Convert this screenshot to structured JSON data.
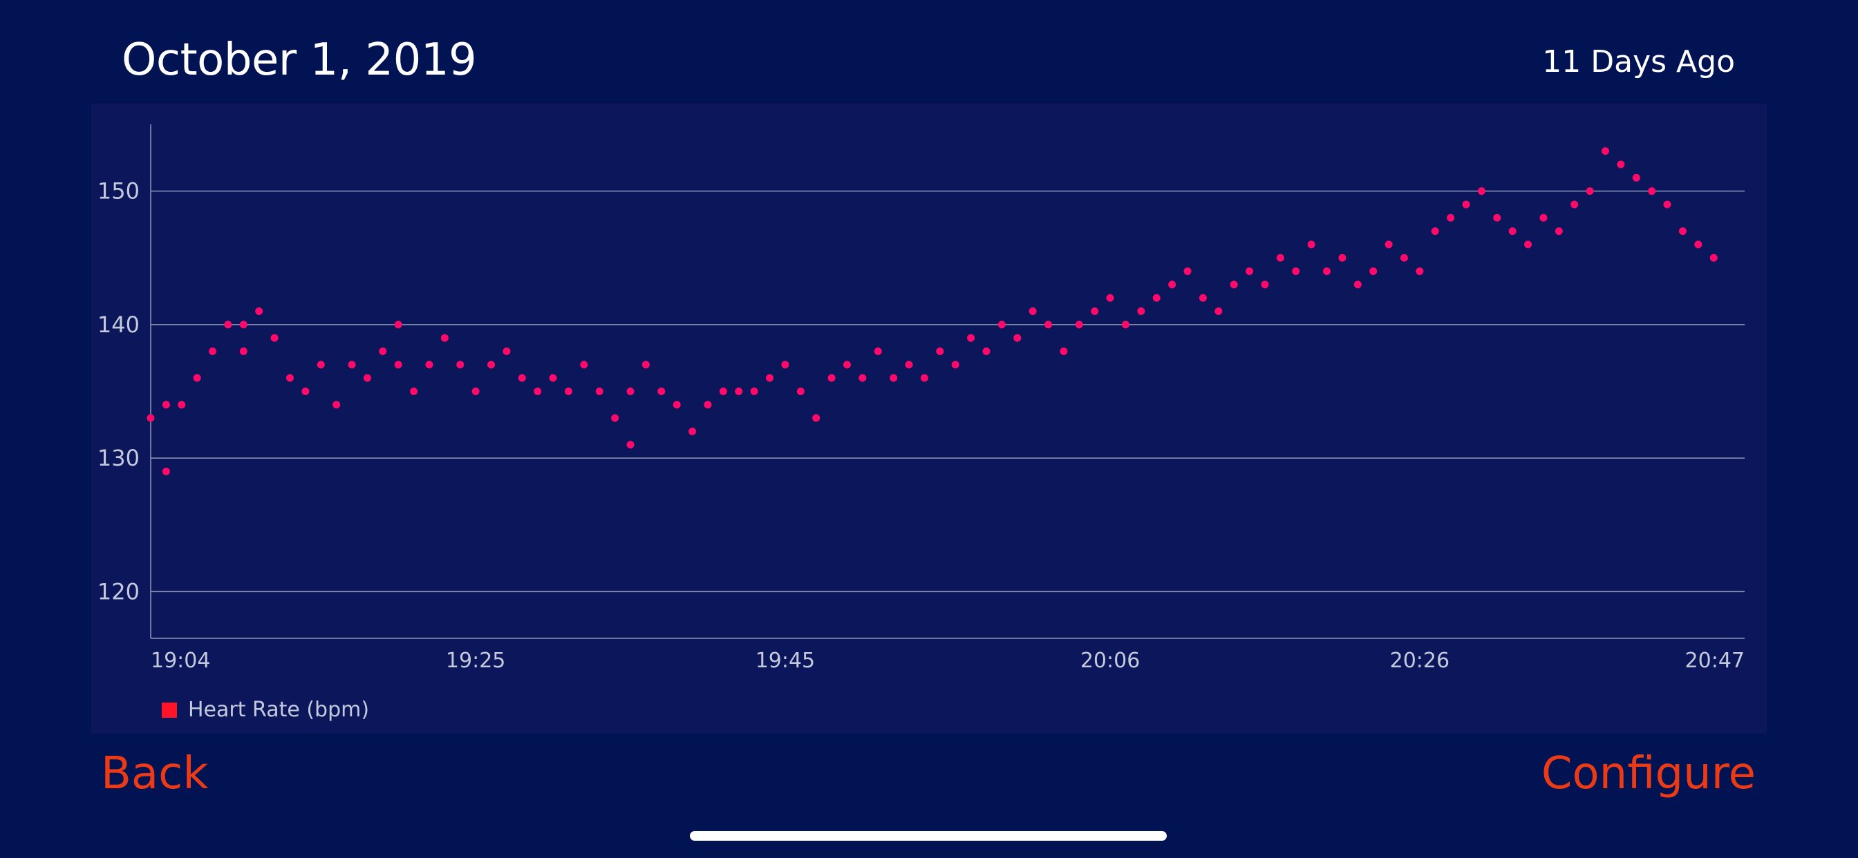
{
  "header": {
    "date": "October 1, 2019",
    "ago": "11 Days Ago"
  },
  "footer": {
    "back_label": "Back",
    "configure_label": "Configure"
  },
  "colors": {
    "background": "#011353",
    "panel": "#0c175b",
    "points": "#ff0a6a",
    "legend_swatch": "#ff1428",
    "buttons": "#ea3a16",
    "gridline": "#9098b8"
  },
  "chart_data": {
    "type": "scatter",
    "legend": [
      "Heart Rate (bpm)"
    ],
    "legend_position": "bottom-left",
    "y_ticks": [
      120,
      130,
      140,
      150
    ],
    "ylim": [
      116.5,
      155
    ],
    "x_ticks": [
      "19:04",
      "19:25",
      "19:45",
      "20:06",
      "20:26",
      "20:47"
    ],
    "xlim": [
      "19:04",
      "20:47"
    ],
    "grid": true,
    "series": [
      {
        "name": "Heart Rate (bpm)",
        "color": "#ff0a6a",
        "points": [
          [
            "19:04",
            133
          ],
          [
            "19:05",
            134
          ],
          [
            "19:05",
            129
          ],
          [
            "19:06",
            134
          ],
          [
            "19:07",
            136
          ],
          [
            "19:08",
            138
          ],
          [
            "19:09",
            140
          ],
          [
            "19:10",
            140
          ],
          [
            "19:10",
            138
          ],
          [
            "19:11",
            141
          ],
          [
            "19:12",
            139
          ],
          [
            "19:13",
            136
          ],
          [
            "19:14",
            135
          ],
          [
            "19:15",
            137
          ],
          [
            "19:16",
            134
          ],
          [
            "19:17",
            137
          ],
          [
            "19:18",
            136
          ],
          [
            "19:19",
            138
          ],
          [
            "19:20",
            140
          ],
          [
            "19:20",
            137
          ],
          [
            "19:21",
            135
          ],
          [
            "19:22",
            137
          ],
          [
            "19:23",
            139
          ],
          [
            "19:24",
            137
          ],
          [
            "19:25",
            135
          ],
          [
            "19:26",
            137
          ],
          [
            "19:27",
            138
          ],
          [
            "19:28",
            136
          ],
          [
            "19:29",
            135
          ],
          [
            "19:30",
            136
          ],
          [
            "19:31",
            135
          ],
          [
            "19:32",
            137
          ],
          [
            "19:33",
            135
          ],
          [
            "19:34",
            133
          ],
          [
            "19:35",
            131
          ],
          [
            "19:35",
            135
          ],
          [
            "19:36",
            137
          ],
          [
            "19:37",
            135
          ],
          [
            "19:38",
            134
          ],
          [
            "19:39",
            132
          ],
          [
            "19:40",
            134
          ],
          [
            "19:41",
            135
          ],
          [
            "19:42",
            135
          ],
          [
            "19:43",
            135
          ],
          [
            "19:44",
            136
          ],
          [
            "19:45",
            137
          ],
          [
            "19:46",
            135
          ],
          [
            "19:47",
            133
          ],
          [
            "19:48",
            136
          ],
          [
            "19:49",
            137
          ],
          [
            "19:50",
            136
          ],
          [
            "19:51",
            138
          ],
          [
            "19:52",
            136
          ],
          [
            "19:53",
            137
          ],
          [
            "19:54",
            136
          ],
          [
            "19:55",
            138
          ],
          [
            "19:56",
            137
          ],
          [
            "19:57",
            139
          ],
          [
            "19:58",
            138
          ],
          [
            "19:59",
            140
          ],
          [
            "20:00",
            139
          ],
          [
            "20:01",
            141
          ],
          [
            "20:02",
            140
          ],
          [
            "20:03",
            138
          ],
          [
            "20:04",
            140
          ],
          [
            "20:05",
            141
          ],
          [
            "20:06",
            142
          ],
          [
            "20:07",
            140
          ],
          [
            "20:08",
            141
          ],
          [
            "20:09",
            142
          ],
          [
            "20:10",
            143
          ],
          [
            "20:11",
            144
          ],
          [
            "20:12",
            142
          ],
          [
            "20:13",
            141
          ],
          [
            "20:14",
            143
          ],
          [
            "20:15",
            144
          ],
          [
            "20:16",
            143
          ],
          [
            "20:17",
            145
          ],
          [
            "20:18",
            144
          ],
          [
            "20:19",
            146
          ],
          [
            "20:20",
            144
          ],
          [
            "20:21",
            145
          ],
          [
            "20:22",
            143
          ],
          [
            "20:23",
            144
          ],
          [
            "20:24",
            146
          ],
          [
            "20:25",
            145
          ],
          [
            "20:26",
            144
          ],
          [
            "20:27",
            147
          ],
          [
            "20:28",
            148
          ],
          [
            "20:29",
            149
          ],
          [
            "20:30",
            150
          ],
          [
            "20:31",
            148
          ],
          [
            "20:32",
            147
          ],
          [
            "20:33",
            146
          ],
          [
            "20:34",
            148
          ],
          [
            "20:35",
            147
          ],
          [
            "20:36",
            149
          ],
          [
            "20:37",
            150
          ],
          [
            "20:38",
            153
          ],
          [
            "20:39",
            152
          ],
          [
            "20:40",
            151
          ],
          [
            "20:41",
            150
          ],
          [
            "20:42",
            149
          ],
          [
            "20:43",
            147
          ],
          [
            "20:44",
            146
          ],
          [
            "20:45",
            145
          ]
        ]
      }
    ]
  }
}
